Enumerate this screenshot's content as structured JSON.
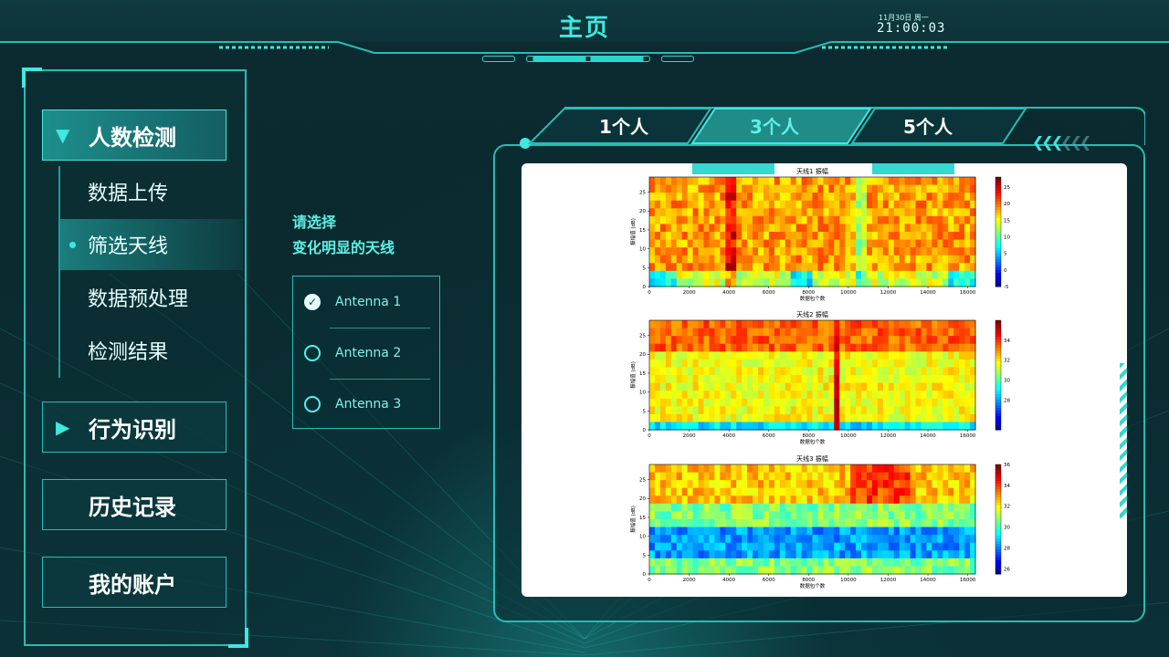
{
  "header": {
    "title": "主页",
    "date": "11月30日 周一",
    "time": "21:00:03"
  },
  "nav": {
    "main": [
      {
        "label": "人数检测",
        "active": true
      },
      {
        "label": "行为识别",
        "active": false
      },
      {
        "label": "历史记录",
        "active": false
      },
      {
        "label": "我的账户",
        "active": false
      }
    ],
    "sub": [
      {
        "label": "数据上传",
        "active": false
      },
      {
        "label": "筛选天线",
        "active": true
      },
      {
        "label": "数据预处理",
        "active": false
      },
      {
        "label": "检测结果",
        "active": false
      }
    ]
  },
  "selector": {
    "title_line1": "请选择",
    "title_line2": "变化明显的天线",
    "options": [
      {
        "label": "Antenna 1",
        "checked": true
      },
      {
        "label": "Antenna 2",
        "checked": false
      },
      {
        "label": "Antenna 3",
        "checked": false
      }
    ]
  },
  "tabs": [
    {
      "label": "1个人",
      "active": false
    },
    {
      "label": "3个人",
      "active": true
    },
    {
      "label": "5个人",
      "active": false
    }
  ],
  "icons": {
    "caret_down": "caret-down-icon",
    "caret_right": "caret-right-icon",
    "check": "check-icon",
    "chevrons": "double-chevron-left-icon"
  },
  "colors": {
    "accent": "#3fe8e0",
    "border": "#25bdb7",
    "background": "#0b2b30"
  },
  "chart_data": [
    {
      "type": "heatmap",
      "title": "天线1 振幅",
      "xlabel": "数据包个数",
      "ylabel": "振幅值 (dB)",
      "xlim": [
        0,
        16384
      ],
      "ylim": [
        0,
        29
      ],
      "x_ticks": [
        0,
        2000,
        4000,
        6000,
        8000,
        10000,
        12000,
        14000,
        16000
      ],
      "y_ticks": [
        0,
        5,
        10,
        15,
        20,
        25
      ],
      "colorbar_range": [
        -5,
        28
      ],
      "colorbar_ticks": [
        25,
        20,
        15,
        10,
        5,
        0,
        -5
      ],
      "colormap": "jet"
    },
    {
      "type": "heatmap",
      "title": "天线2 振幅",
      "xlabel": "数据包个数",
      "ylabel": "振幅值 (dB)",
      "xlim": [
        0,
        16384
      ],
      "ylim": [
        0,
        29
      ],
      "x_ticks": [
        0,
        2000,
        4000,
        6000,
        8000,
        10000,
        12000,
        14000,
        16000
      ],
      "y_ticks": [
        0,
        5,
        10,
        15,
        20,
        25
      ],
      "colorbar_range": [
        25,
        36
      ],
      "colorbar_ticks": [
        34,
        32,
        30,
        28
      ],
      "colormap": "jet"
    },
    {
      "type": "heatmap",
      "title": "天线3 振幅",
      "xlabel": "数据包个数",
      "ylabel": "振幅值 (dB)",
      "xlim": [
        0,
        16384
      ],
      "ylim": [
        0,
        29
      ],
      "x_ticks": [
        0,
        2000,
        4000,
        6000,
        8000,
        10000,
        12000,
        14000,
        16000
      ],
      "y_ticks": [
        0,
        5,
        10,
        15,
        20,
        25
      ],
      "colorbar_range": [
        25.5,
        36
      ],
      "colorbar_ticks": [
        36,
        34,
        32,
        30,
        28,
        26
      ],
      "colormap": "jet"
    }
  ]
}
